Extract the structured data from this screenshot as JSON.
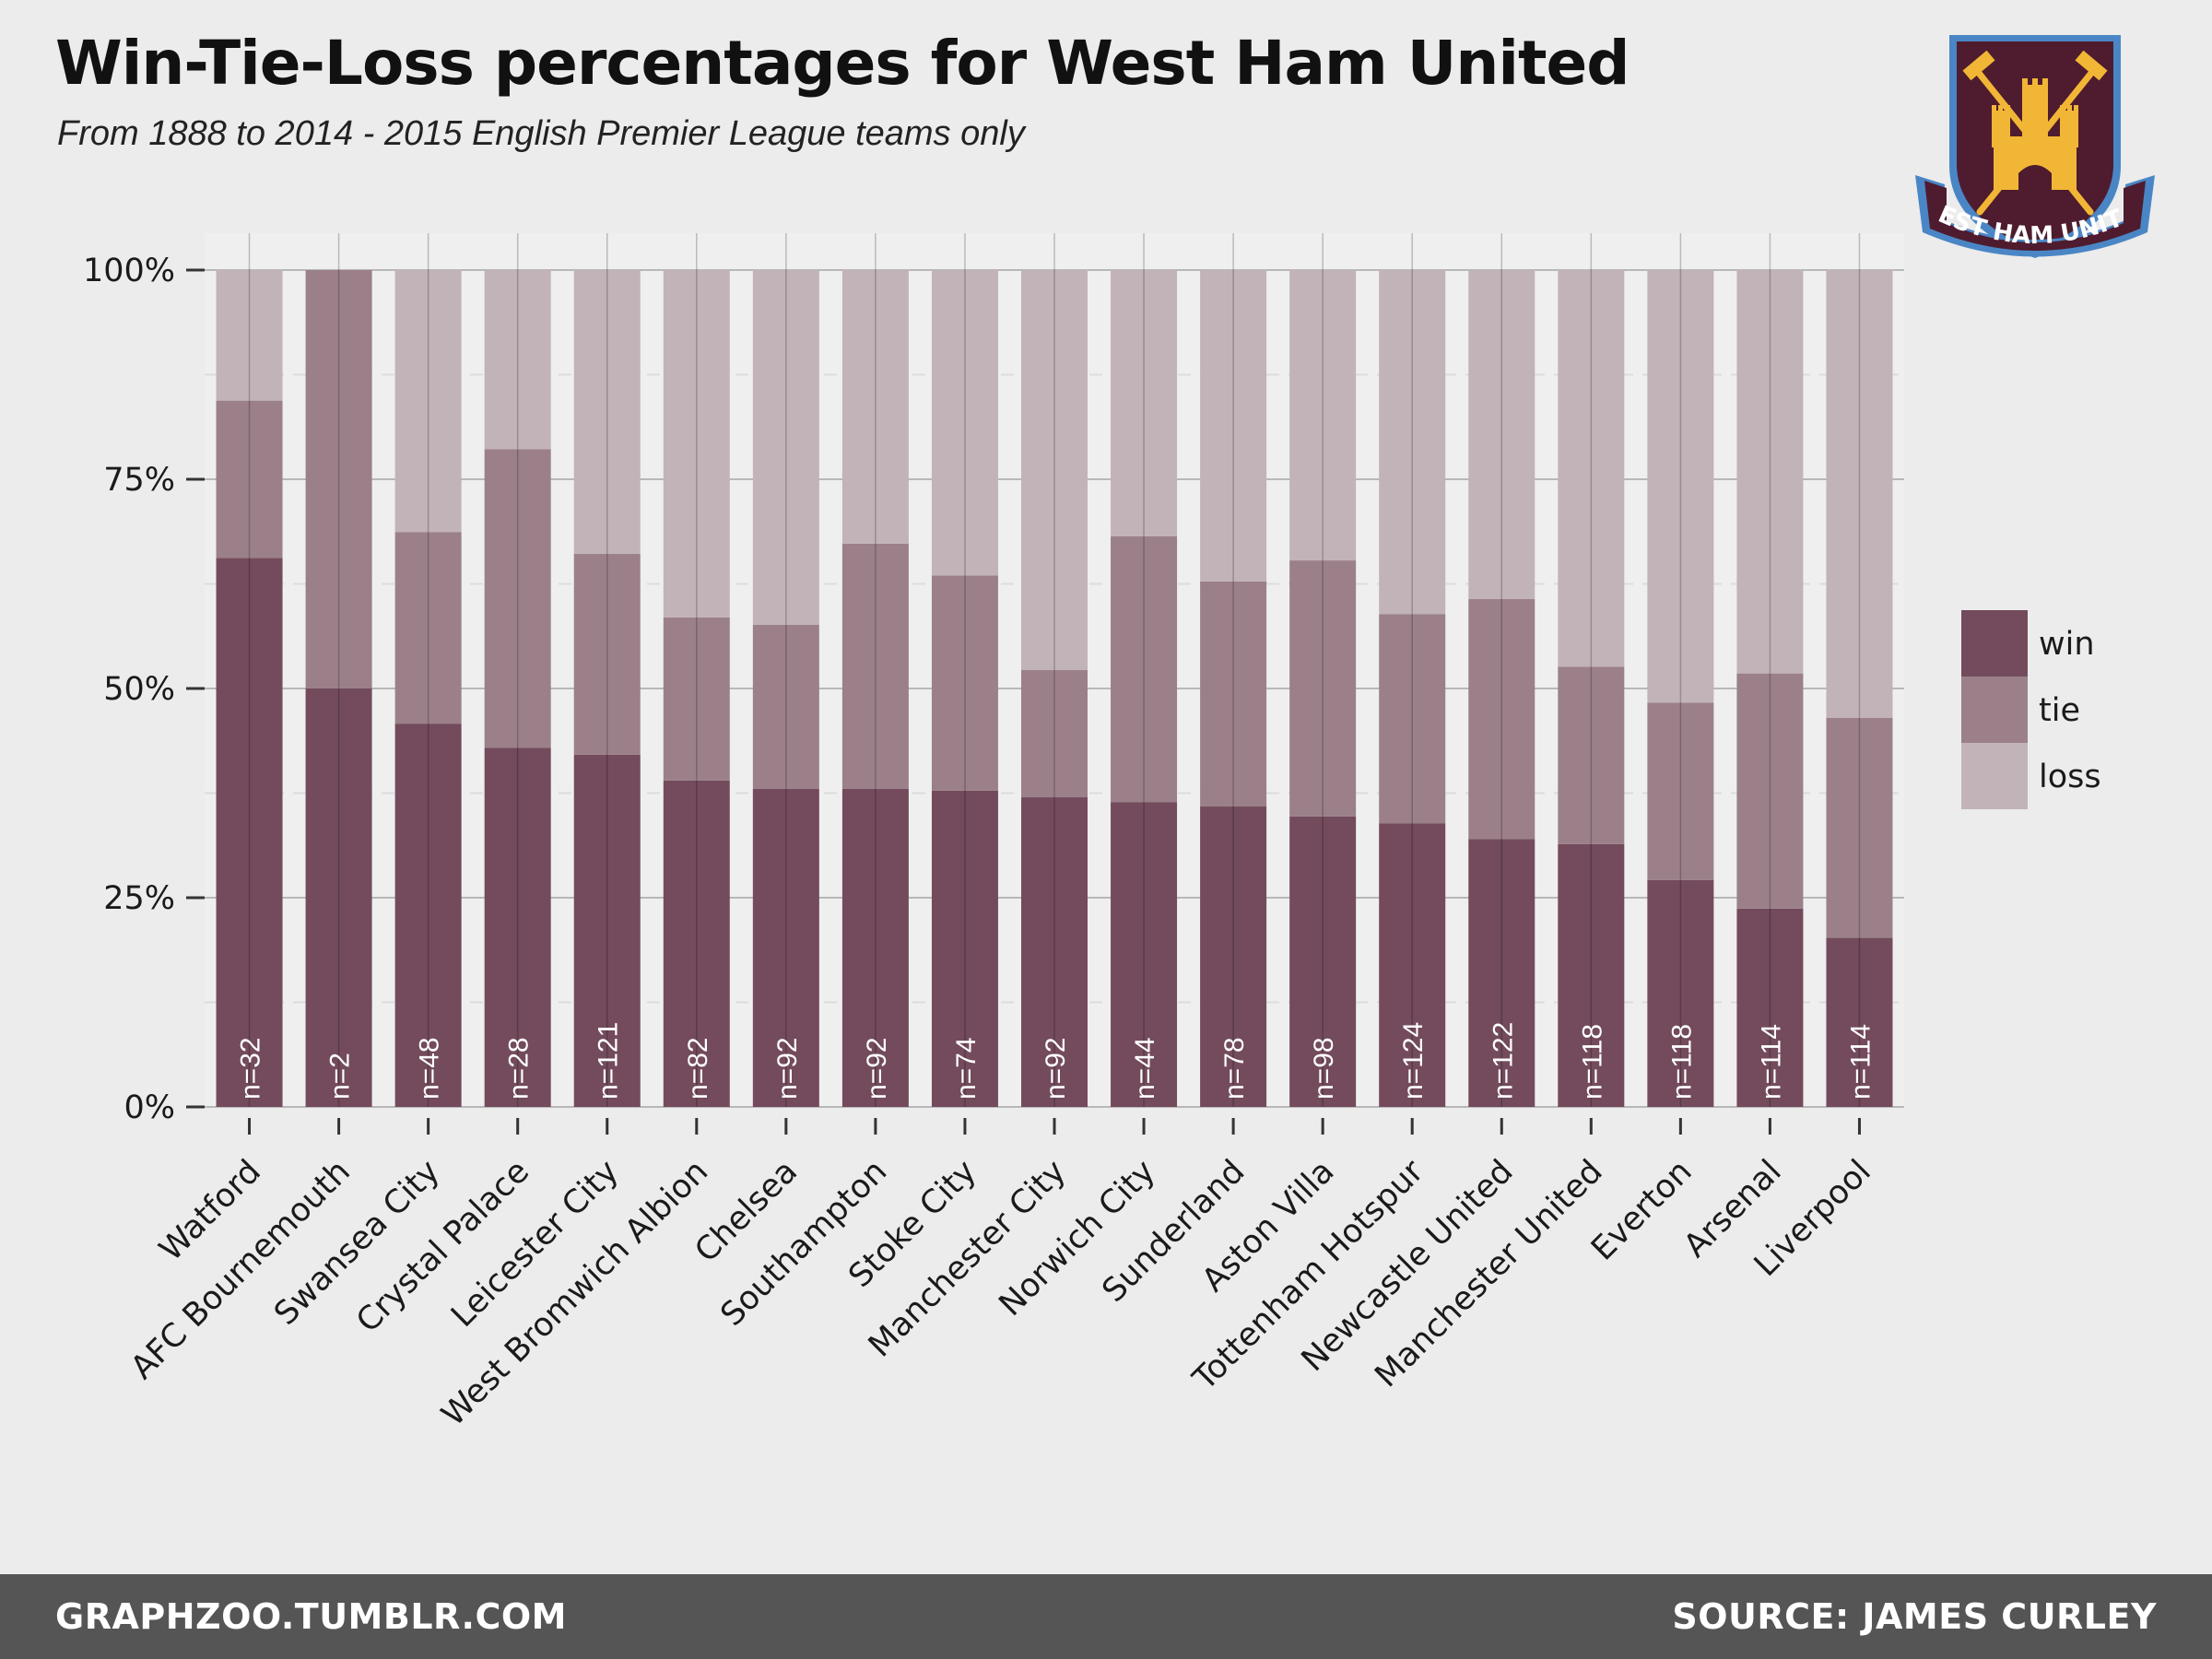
{
  "header": {
    "title": "Win-Tie-Loss percentages for West Ham United",
    "subtitle": "From 1888 to 2014 - 2015 English Premier League teams only"
  },
  "crest": {
    "text": "WEST HAM UNITED",
    "colors": {
      "claret": "#4e1c2e",
      "blue": "#4a86c5",
      "gold": "#f2b636"
    }
  },
  "footer": {
    "left": "GRAPHZOO.TUMBLR.COM",
    "right": "SOURCE: JAMES CURLEY"
  },
  "chart_data": {
    "type": "bar",
    "stacked": true,
    "categories": [
      "Watford",
      "AFC Bournemouth",
      "Swansea City",
      "Crystal Palace",
      "Leicester City",
      "West Bromwich Albion",
      "Chelsea",
      "Southampton",
      "Stoke City",
      "Manchester City",
      "Norwich City",
      "Sunderland",
      "Aston Villa",
      "Tottenham Hotspur",
      "Newcastle United",
      "Manchester United",
      "Everton",
      "Arsenal",
      "Liverpool"
    ],
    "series": [
      {
        "name": "win",
        "color": "#734b5c",
        "values": [
          65.6,
          50.0,
          45.8,
          42.9,
          42.1,
          39.0,
          38.0,
          38.0,
          37.8,
          37.0,
          36.4,
          35.9,
          34.7,
          33.9,
          32.0,
          31.4,
          27.1,
          23.7,
          20.2
        ]
      },
      {
        "name": "tie",
        "color": "#9b8089",
        "values": [
          18.8,
          50.0,
          22.9,
          35.7,
          24.0,
          19.5,
          19.6,
          29.3,
          25.7,
          15.2,
          31.8,
          26.9,
          30.6,
          25.0,
          28.7,
          21.2,
          21.2,
          28.1,
          26.3
        ]
      },
      {
        "name": "loss",
        "color": "#c2b3b8",
        "values": [
          15.6,
          0.0,
          31.3,
          21.4,
          33.9,
          41.5,
          42.4,
          32.7,
          36.5,
          47.8,
          31.8,
          37.2,
          34.7,
          41.1,
          39.3,
          47.4,
          51.7,
          48.2,
          53.5
        ]
      }
    ],
    "n_labels": [
      "n=32",
      "n=2",
      "n=48",
      "n=28",
      "n=121",
      "n=82",
      "n=92",
      "n=92",
      "n=74",
      "n=92",
      "n=44",
      "n=78",
      "n=98",
      "n=124",
      "n=122",
      "n=118",
      "n=118",
      "n=114",
      "n=114"
    ],
    "y_ticks": [
      "0%",
      "25%",
      "50%",
      "75%",
      "100%"
    ],
    "ylim": [
      0,
      100
    ],
    "xlabel": "",
    "ylabel": "",
    "legend": {
      "position": "right",
      "entries": [
        "win",
        "tie",
        "loss"
      ]
    },
    "grid": true
  }
}
